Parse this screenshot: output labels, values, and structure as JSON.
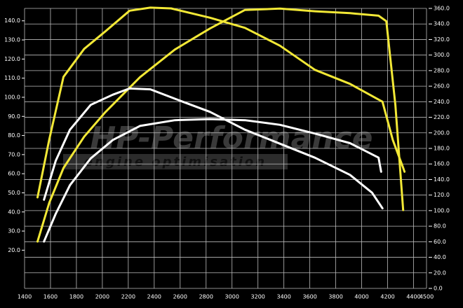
{
  "chart_data": {
    "type": "line",
    "watermark": [
      "HP-Performance",
      "engine optimisation"
    ],
    "xlim": [
      1400,
      4500
    ],
    "xticks": [
      1400,
      1600,
      1800,
      2000,
      2200,
      2400,
      2600,
      2800,
      3000,
      3200,
      3400,
      3600,
      3800,
      4000,
      4200,
      4400,
      4500
    ],
    "ylim": [
      0,
      146.5
    ],
    "yticks": [
      {
        "value": 20,
        "label": "20.0"
      },
      {
        "value": 30,
        "label": "30.0"
      },
      {
        "value": 40,
        "label": "40.0"
      },
      {
        "value": 50,
        "label": "50.0"
      },
      {
        "value": 60,
        "label": "60.0"
      },
      {
        "value": 70,
        "label": "70.0"
      },
      {
        "value": 80,
        "label": "80.0"
      },
      {
        "value": 90,
        "label": "90.0"
      },
      {
        "value": 100,
        "label": "100.0"
      },
      {
        "value": 110,
        "label": "110.0"
      },
      {
        "value": 120,
        "label": "120.0"
      },
      {
        "value": 130,
        "label": "130.0"
      },
      {
        "value": 140,
        "label": "140.0"
      }
    ],
    "y2lim": [
      0,
      360
    ],
    "y2ticks": [
      {
        "value": 0,
        "label": "0.0"
      },
      {
        "value": 20,
        "label": "20.0"
      },
      {
        "value": 40,
        "label": "40.0"
      },
      {
        "value": 60,
        "label": "60.0"
      },
      {
        "value": 80,
        "label": "80.0"
      },
      {
        "value": 100,
        "label": "100.0"
      },
      {
        "value": 120,
        "label": "120.0"
      },
      {
        "value": 140,
        "label": "140.0"
      },
      {
        "value": 160,
        "label": "160.0"
      },
      {
        "value": 180,
        "label": "180.0"
      },
      {
        "value": 200,
        "label": "200.0"
      },
      {
        "value": 220,
        "label": "220.0"
      },
      {
        "value": 240,
        "label": "240.0"
      },
      {
        "value": 260,
        "label": "260.0"
      },
      {
        "value": 280,
        "label": "280.0"
      },
      {
        "value": 300,
        "label": "300.0"
      },
      {
        "value": 320,
        "label": "320.0"
      },
      {
        "value": 340,
        "label": "340.0"
      },
      {
        "value": 360,
        "label": "360.0"
      }
    ],
    "grid": true,
    "series": [
      {
        "color": "#f2e836",
        "axis": "y2",
        "x": [
          1500,
          1590,
          1700,
          1860,
          2020,
          2210,
          2370,
          2530,
          2830,
          3100,
          3370,
          3640,
          3910,
          4160,
          4240,
          4320,
          4330
        ],
        "values": [
          117,
          191,
          272,
          308,
          330,
          357,
          361,
          360,
          348,
          335,
          312,
          281,
          263,
          240,
          191,
          155,
          150
        ]
      },
      {
        "color": "#f2e836",
        "x": [
          1500,
          1590,
          1700,
          1860,
          2020,
          2290,
          2560,
          2830,
          3100,
          3370,
          3640,
          3910,
          4130,
          4190,
          4260,
          4320
        ],
        "values": [
          24.5,
          44.7,
          63,
          79.4,
          92,
          110.5,
          125,
          136,
          145.7,
          146.4,
          145,
          144,
          142.7,
          139.8,
          96,
          41
        ]
      },
      {
        "color": "#ffffff",
        "axis": "y2",
        "x": [
          1550,
          1640,
          1750,
          1910,
          2080,
          2210,
          2370,
          2620,
          2830,
          3100,
          3370,
          3640,
          3910,
          4080,
          4160
        ],
        "values": [
          114,
          164,
          204,
          236,
          249,
          257,
          256,
          240,
          227,
          204,
          186,
          168,
          146,
          123,
          103
        ]
      },
      {
        "color": "#ffffff",
        "x": [
          1550,
          1640,
          1750,
          1910,
          2080,
          2290,
          2560,
          2830,
          3100,
          3370,
          3640,
          3910,
          4130,
          4150
        ],
        "values": [
          24.5,
          39,
          54,
          68,
          77.6,
          85,
          88,
          88.6,
          88,
          85.6,
          81,
          76,
          68.4,
          61
        ]
      }
    ]
  }
}
